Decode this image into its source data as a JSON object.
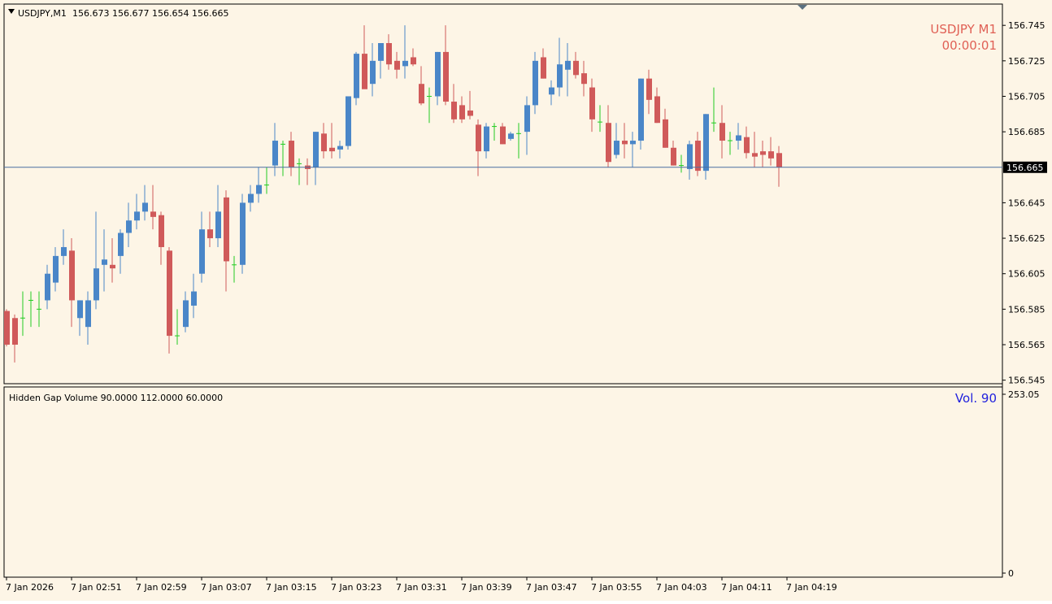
{
  "header": {
    "symbol_info": "USDJPY,M1",
    "ohlc": "156.673 156.677 156.654 156.665",
    "corner_symbol": "USDJPY  M1",
    "timer": "00:00:01"
  },
  "indicator": {
    "caption": "Hidden Gap Volume 90.0000 112.0000 60.0000",
    "vol_label": "Vol.  90"
  },
  "colors": {
    "background": "#fdf5e6",
    "bull": "#4a86c8",
    "bear": "#d05a5a",
    "doji": "#22cc22",
    "price_line": "#4a6ea0",
    "vol_navy": "#0a0a78",
    "vol_red": "#f01e1e",
    "vol_pink": "#ffc0cb",
    "vol_blue": "#4169e1",
    "vol_yellow": "#f0f000",
    "ma": "#1e7d1e"
  },
  "chart_data": [
    {
      "type": "candlestick",
      "title": "USDJPY,M1",
      "current_price": 156.665,
      "current_price_label": "156.665",
      "ylim": [
        156.543,
        156.757
      ],
      "y_ticks": [
        "156.745",
        "156.725",
        "156.705",
        "156.685",
        "156.665",
        "156.645",
        "156.625",
        "156.605",
        "156.585",
        "156.565",
        "156.545"
      ],
      "x_ticks": [
        "7 Jan 2026",
        "7 Jan 02:51",
        "7 Jan 02:59",
        "7 Jan 03:07",
        "7 Jan 03:15",
        "7 Jan 03:23",
        "7 Jan 03:31",
        "7 Jan 03:39",
        "7 Jan 03:47",
        "7 Jan 03:55",
        "7 Jan 04:03",
        "7 Jan 04:11",
        "7 Jan 04:19"
      ],
      "ohlc": [
        [
          156.584,
          156.585,
          156.564,
          156.565
        ],
        [
          156.58,
          156.582,
          156.555,
          156.565
        ],
        [
          156.58,
          156.595,
          156.57,
          156.58
        ],
        [
          156.59,
          156.595,
          156.575,
          156.59
        ],
        [
          156.585,
          156.595,
          156.575,
          156.585
        ],
        [
          156.59,
          156.61,
          156.585,
          156.605
        ],
        [
          156.6,
          156.62,
          156.595,
          156.615
        ],
        [
          156.615,
          156.63,
          156.61,
          156.62
        ],
        [
          156.618,
          156.625,
          156.575,
          156.59
        ],
        [
          156.58,
          156.59,
          156.57,
          156.59
        ],
        [
          156.575,
          156.595,
          156.565,
          156.59
        ],
        [
          156.59,
          156.64,
          156.585,
          156.608
        ],
        [
          156.61,
          156.63,
          156.595,
          156.613
        ],
        [
          156.61,
          156.625,
          156.6,
          156.608
        ],
        [
          156.615,
          156.63,
          156.605,
          156.628
        ],
        [
          156.628,
          156.645,
          156.62,
          156.635
        ],
        [
          156.635,
          156.65,
          156.63,
          156.64
        ],
        [
          156.64,
          156.655,
          156.635,
          156.645
        ],
        [
          156.64,
          156.655,
          156.63,
          156.637
        ],
        [
          156.638,
          156.64,
          156.61,
          156.62
        ],
        [
          156.618,
          156.62,
          156.56,
          156.57
        ],
        [
          156.57,
          156.585,
          156.565,
          156.57
        ],
        [
          156.575,
          156.595,
          156.572,
          156.59
        ],
        [
          156.587,
          156.605,
          156.58,
          156.595
        ],
        [
          156.605,
          156.64,
          156.6,
          156.63
        ],
        [
          156.63,
          156.64,
          156.62,
          156.625
        ],
        [
          156.625,
          156.655,
          156.62,
          156.64
        ],
        [
          156.648,
          156.652,
          156.595,
          156.612
        ],
        [
          156.61,
          156.615,
          156.6,
          156.61
        ],
        [
          156.61,
          156.65,
          156.605,
          156.645
        ],
        [
          156.645,
          156.655,
          156.64,
          156.65
        ],
        [
          156.65,
          156.665,
          156.645,
          156.655
        ],
        [
          156.655,
          156.665,
          156.65,
          156.655
        ],
        [
          156.666,
          156.69,
          156.66,
          156.68
        ],
        [
          156.678,
          156.68,
          156.66,
          156.678
        ],
        [
          156.68,
          156.685,
          156.66,
          156.665
        ],
        [
          156.667,
          156.67,
          156.655,
          156.667
        ],
        [
          156.666,
          156.67,
          156.655,
          156.664
        ],
        [
          156.665,
          156.685,
          156.655,
          156.685
        ],
        [
          156.684,
          156.69,
          156.67,
          156.674
        ],
        [
          156.676,
          156.69,
          156.67,
          156.674
        ],
        [
          156.675,
          156.68,
          156.67,
          156.677
        ],
        [
          156.677,
          156.705,
          156.675,
          156.705
        ],
        [
          156.704,
          156.73,
          156.7,
          156.729
        ],
        [
          156.729,
          156.745,
          156.71,
          156.709
        ],
        [
          156.712,
          156.735,
          156.705,
          156.725
        ],
        [
          156.725,
          156.735,
          156.715,
          156.735
        ],
        [
          156.735,
          156.74,
          156.72,
          156.723
        ],
        [
          156.725,
          156.73,
          156.715,
          156.72
        ],
        [
          156.722,
          156.745,
          156.715,
          156.725
        ],
        [
          156.727,
          156.732,
          156.722,
          156.723
        ],
        [
          156.712,
          156.722,
          156.7,
          156.701
        ],
        [
          156.705,
          156.71,
          156.69,
          156.705
        ],
        [
          156.705,
          156.73,
          156.7,
          156.73
        ],
        [
          156.73,
          156.745,
          156.7,
          156.702
        ],
        [
          156.702,
          156.712,
          156.69,
          156.692
        ],
        [
          156.7,
          156.705,
          156.69,
          156.692
        ],
        [
          156.697,
          156.708,
          156.692,
          156.694
        ],
        [
          156.689,
          156.692,
          156.66,
          156.674
        ],
        [
          156.674,
          156.69,
          156.67,
          156.688
        ],
        [
          156.688,
          156.69,
          156.68,
          156.688
        ],
        [
          156.688,
          156.69,
          156.678,
          156.678
        ],
        [
          156.681,
          156.685,
          156.68,
          156.684
        ],
        [
          156.684,
          156.69,
          156.67,
          156.684
        ],
        [
          156.685,
          156.705,
          156.672,
          156.7
        ],
        [
          156.7,
          156.73,
          156.695,
          156.725
        ],
        [
          156.727,
          156.732,
          156.715,
          156.715
        ],
        [
          156.706,
          156.714,
          156.7,
          156.71
        ],
        [
          156.71,
          156.738,
          156.705,
          156.723
        ],
        [
          156.72,
          156.735,
          156.705,
          156.725
        ],
        [
          156.725,
          156.73,
          156.715,
          156.717
        ],
        [
          156.718,
          156.725,
          156.705,
          156.712
        ],
        [
          156.71,
          156.715,
          156.685,
          156.692
        ],
        [
          156.691,
          156.7,
          156.685,
          156.69
        ],
        [
          156.69,
          156.7,
          156.665,
          156.668
        ],
        [
          156.672,
          156.69,
          156.67,
          156.68
        ],
        [
          156.68,
          156.69,
          156.67,
          156.678
        ],
        [
          156.678,
          156.685,
          156.665,
          156.68
        ],
        [
          156.68,
          156.715,
          156.675,
          156.715
        ],
        [
          156.715,
          156.72,
          156.695,
          156.703
        ],
        [
          156.705,
          156.71,
          156.69,
          156.69
        ],
        [
          156.692,
          156.698,
          156.676,
          156.676
        ],
        [
          156.676,
          156.68,
          156.666,
          156.666
        ],
        [
          156.666,
          156.672,
          156.662,
          156.666
        ],
        [
          156.664,
          156.68,
          156.658,
          156.678
        ],
        [
          156.68,
          156.685,
          156.66,
          156.663
        ],
        [
          156.663,
          156.695,
          156.658,
          156.695
        ],
        [
          156.69,
          156.71,
          156.685,
          156.69
        ],
        [
          156.69,
          156.7,
          156.67,
          156.68
        ],
        [
          156.68,
          156.685,
          156.672,
          156.68
        ],
        [
          156.68,
          156.69,
          156.675,
          156.683
        ],
        [
          156.682,
          156.688,
          156.67,
          156.673
        ],
        [
          156.673,
          156.685,
          156.665,
          156.671
        ],
        [
          156.674,
          156.68,
          156.665,
          156.672
        ],
        [
          156.674,
          156.682,
          156.666,
          156.67
        ],
        [
          156.673,
          156.677,
          156.654,
          156.665
        ]
      ]
    },
    {
      "type": "bar",
      "title": "Hidden Gap Volume 90.0000 112.0000 60.0000",
      "ylim": [
        0,
        253.05
      ],
      "y_ticks": [
        "253.05",
        "0"
      ],
      "values": [],
      "color_codes": ""
    }
  ]
}
